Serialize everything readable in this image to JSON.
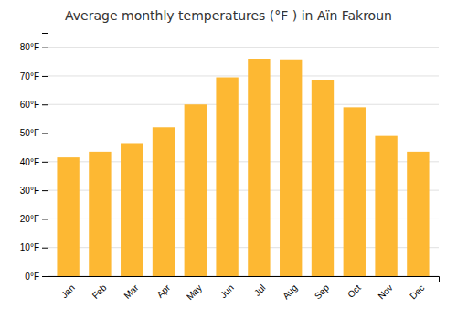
{
  "chart_data": {
    "type": "bar",
    "title": "Average monthly temperatures (°F ) in Aïn Fakroun",
    "categories": [
      "Jan",
      "Feb",
      "Mar",
      "Apr",
      "May",
      "Jun",
      "Jul",
      "Aug",
      "Sep",
      "Oct",
      "Nov",
      "Dec"
    ],
    "values": [
      41.5,
      43.5,
      46.5,
      52.0,
      60.0,
      69.5,
      76.0,
      75.5,
      68.5,
      59.0,
      49.0,
      43.5
    ],
    "color": "#FDB833",
    "ylim": [
      0,
      85
    ],
    "yticks": [
      {
        "value": 0,
        "label": "0°F"
      },
      {
        "value": 10,
        "label": "10°F"
      },
      {
        "value": 20,
        "label": "20°F"
      },
      {
        "value": 30,
        "label": "30°F"
      },
      {
        "value": 40,
        "label": "40°F"
      },
      {
        "value": 50,
        "label": "50°F"
      },
      {
        "value": 60,
        "label": "60°F"
      },
      {
        "value": 70,
        "label": "70°F"
      },
      {
        "value": 80,
        "label": "80°F"
      }
    ],
    "grid": true
  }
}
